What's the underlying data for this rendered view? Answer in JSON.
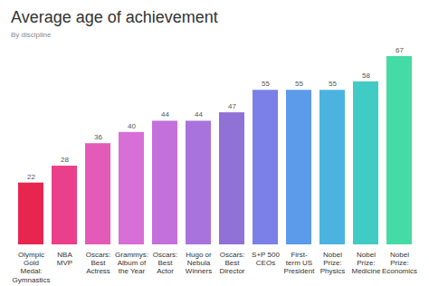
{
  "chart_data": {
    "type": "bar",
    "title": "Average age of achievement",
    "subtitle": "By discipline",
    "categories": [
      "Olympic Gold Medal: Gymnastics",
      "NBA MVP",
      "Oscars: Best Actress",
      "Grammys: Album of the Year",
      "Oscars: Best Actor",
      "Hugo or Nebula Winners",
      "Oscars: Best Director",
      "S+P 500 CEOs",
      "First-term US President",
      "Nobel Prize: Physics",
      "Nobel Prize: Medicine",
      "Nobel Prize: Economics"
    ],
    "values": [
      22,
      28,
      36,
      40,
      44,
      44,
      47,
      55,
      55,
      55,
      58,
      67
    ],
    "colors": [
      "#e8254f",
      "#ea3f8a",
      "#e45ab8",
      "#d86fd8",
      "#c370dc",
      "#a873dc",
      "#9072d6",
      "#7a80e8",
      "#5b9bea",
      "#4cb3e0",
      "#40cbc4",
      "#45dba6"
    ],
    "ylim": [
      0,
      67
    ],
    "grid": false,
    "data_labels": true,
    "tick_labels": "x"
  }
}
